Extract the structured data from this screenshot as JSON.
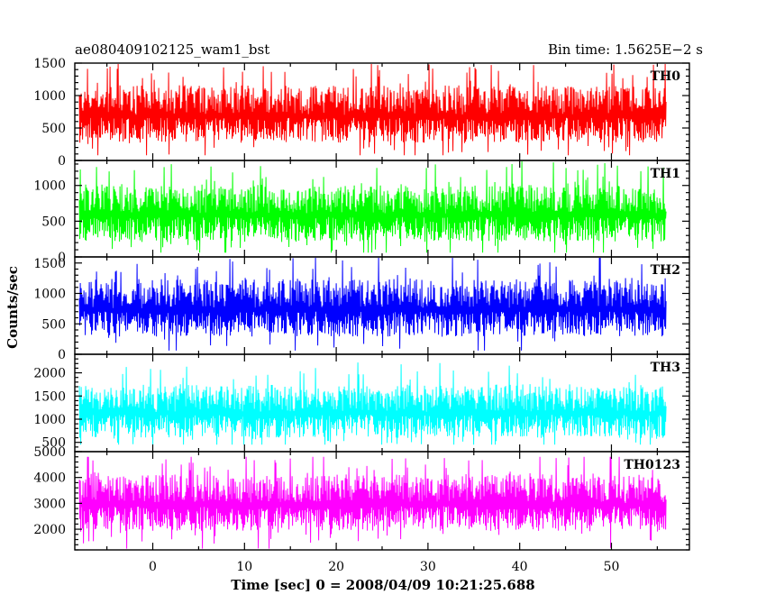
{
  "header": {
    "left_title": "ae080409102125_wam1_bst",
    "right_title": "Bin time: 1.5625E−2 s"
  },
  "chart_data": {
    "type": "line",
    "stacked_panels": true,
    "grid": false,
    "xlabel": "Time [sec] 0 = 2008/04/09 10:21:25.688",
    "ylabel": "Counts/sec",
    "xlim": [
      -8.5,
      58.5
    ],
    "x_data_range": [
      -8.0,
      56.0
    ],
    "x_ticks": [
      0,
      10,
      20,
      30,
      40,
      50
    ],
    "x_tick_labels": [
      "0",
      "10",
      "20",
      "30",
      "40",
      "50"
    ],
    "panels": [
      {
        "name": "TH0",
        "color": "#ff0000",
        "ylim": [
          0,
          1500
        ],
        "y_ticks": [
          0,
          500,
          1000,
          1500
        ],
        "y_tick_labels": [
          "0",
          "500",
          "1000",
          "1500"
        ],
        "series": {
          "name": "TH0",
          "mean": 700,
          "low": 80,
          "high": 1500
        }
      },
      {
        "name": "TH1",
        "color": "#00ff00",
        "ylim": [
          0,
          1350
        ],
        "y_ticks": [
          0,
          500,
          1000
        ],
        "y_tick_labels": [
          "0",
          "500",
          "1000"
        ],
        "series": {
          "name": "TH1",
          "mean": 600,
          "low": 60,
          "high": 1350
        }
      },
      {
        "name": "TH2",
        "color": "#0000ff",
        "ylim": [
          0,
          1600
        ],
        "y_ticks": [
          0,
          500,
          1000,
          1500
        ],
        "y_tick_labels": [
          "0",
          "500",
          "1000",
          "1500"
        ],
        "series": {
          "name": "TH2",
          "mean": 750,
          "low": 60,
          "high": 1600
        }
      },
      {
        "name": "TH3",
        "color": "#00ffff",
        "ylim": [
          300,
          2400
        ],
        "y_ticks": [
          500,
          1000,
          1500,
          2000
        ],
        "y_tick_labels": [
          "500",
          "1000",
          "1500",
          "2000"
        ],
        "series": {
          "name": "TH3",
          "mean": 1150,
          "low": 450,
          "high": 2300
        }
      },
      {
        "name": "TH0123",
        "color": "#ff00ff",
        "ylim": [
          1200,
          5000
        ],
        "y_ticks": [
          2000,
          3000,
          4000,
          5000
        ],
        "y_tick_labels": [
          "2000",
          "3000",
          "4000",
          "5000"
        ],
        "series": {
          "name": "TH0123",
          "mean": 3000,
          "low": 1250,
          "high": 4800
        }
      }
    ]
  }
}
